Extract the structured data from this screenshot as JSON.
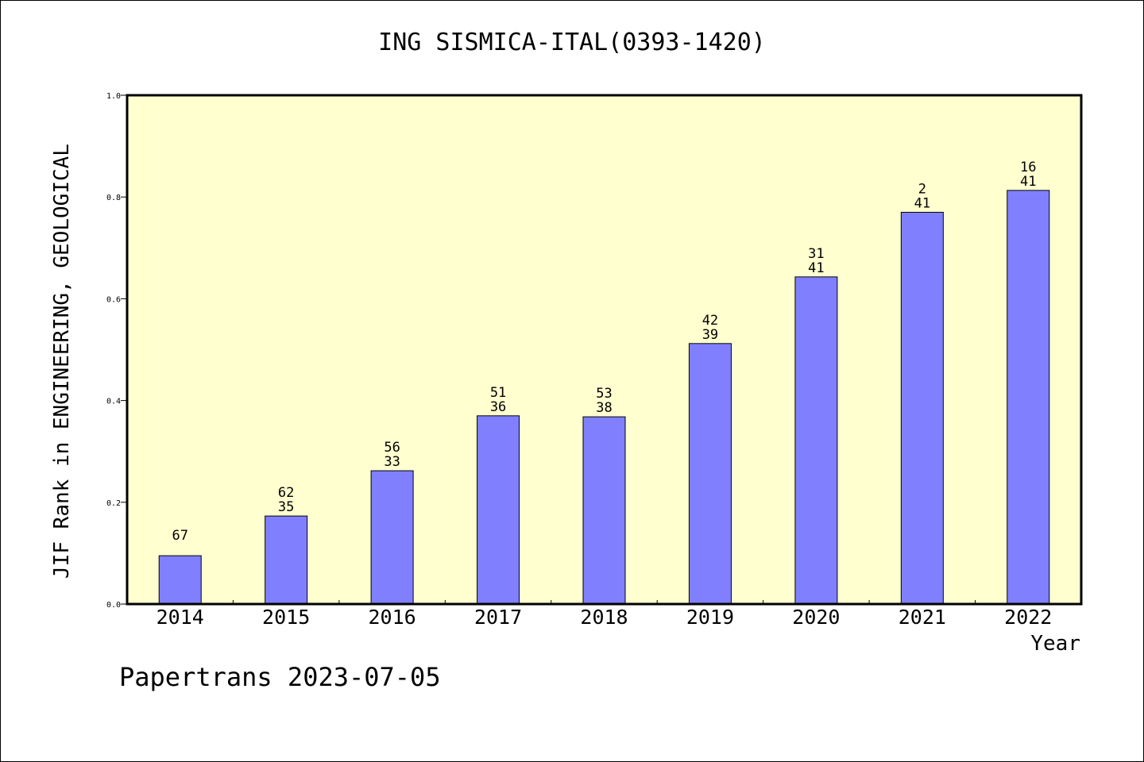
{
  "chart_data": {
    "type": "bar",
    "title": "ING SISMICA-ITAL(0393-1420)",
    "xlabel": "Year",
    "ylabel": "JIF Rank in ENGINEERING, GEOLOGICAL",
    "categories": [
      "2014",
      "2015",
      "2016",
      "2017",
      "2018",
      "2019",
      "2020",
      "2021",
      "2022"
    ],
    "values": [
      0.095,
      0.173,
      0.262,
      0.37,
      0.368,
      0.512,
      0.643,
      0.77,
      0.813
    ],
    "annotations": [
      {
        "top": "67",
        "bottom": ""
      },
      {
        "top": "62",
        "bottom": "35"
      },
      {
        "top": "56",
        "bottom": "33"
      },
      {
        "top": "51",
        "bottom": "36"
      },
      {
        "top": "53",
        "bottom": "38"
      },
      {
        "top": "42",
        "bottom": "39"
      },
      {
        "top": "31",
        "bottom": "41"
      },
      {
        "top": "2",
        "bottom": "41"
      },
      {
        "top": "16",
        "bottom": "41"
      }
    ],
    "ylim": [
      0,
      1.0
    ],
    "yticks": [
      "0.0",
      "0.2",
      "0.4",
      "0.6",
      "0.8",
      "1.0"
    ],
    "grid": false,
    "colors": {
      "bar": "#8080ff",
      "plot_background": "#ffffd0",
      "axis": "#000000"
    }
  },
  "footer": {
    "credit": "Papertrans 2023-07-05"
  }
}
